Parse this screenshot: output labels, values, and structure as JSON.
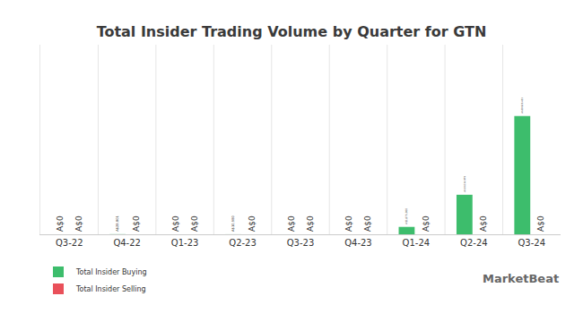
{
  "chart_data": {
    "type": "bar",
    "title": "Total Insider Trading Volume by Quarter for GTN",
    "categories": [
      "Q3-22",
      "Q4-22",
      "Q1-23",
      "Q2-23",
      "Q3-23",
      "Q4-23",
      "Q1-24",
      "Q2-24",
      "Q3-24"
    ],
    "series": [
      {
        "name": "Total Insider Buying",
        "color": "#3dbd6c",
        "values": [
          0,
          28801,
          0,
          10980,
          0,
          0,
          1875000,
          10014979,
          29920453
        ],
        "value_labels": [
          "A$0",
          "A$28,801",
          "A$0",
          "A$10,980",
          "A$0",
          "A$0",
          "A$1,875,000",
          "A$10,014,979",
          "A$29,920,453"
        ]
      },
      {
        "name": "Total Insider Selling",
        "color": "#e9505a",
        "values": [
          0,
          0,
          0,
          0,
          0,
          0,
          0,
          0,
          0
        ],
        "value_labels": [
          "A$0",
          "A$0",
          "A$0",
          "A$0",
          "A$0",
          "A$0",
          "A$0",
          "A$0",
          "A$0"
        ]
      }
    ],
    "ylim": [
      0,
      48000000
    ],
    "grid": true,
    "legend": "bottom-left",
    "data_labels": true,
    "tick_labels": "x",
    "source": "MarketBeat"
  }
}
